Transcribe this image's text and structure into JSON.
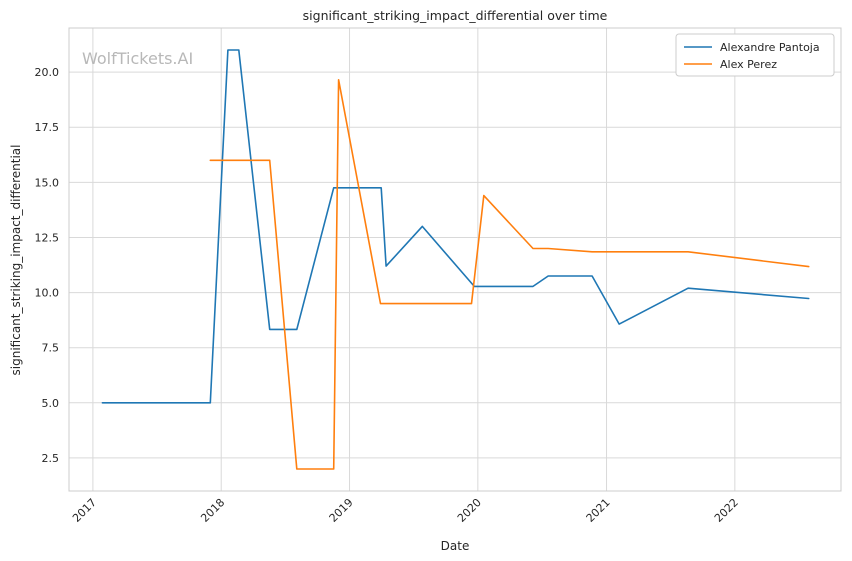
{
  "watermark": "WolfTickets.AI",
  "chart_data": {
    "type": "line",
    "title": "significant_striking_impact_differential over time",
    "xlabel": "Date",
    "ylabel": "significant_striking_impact_differential",
    "x_ticks": [
      "2017",
      "2018",
      "2019",
      "2020",
      "2021",
      "2022"
    ],
    "y_ticks": [
      "2.5",
      "5.0",
      "7.5",
      "10.0",
      "12.5",
      "15.0",
      "17.5",
      "20.0"
    ],
    "xlim": [
      "2016-10-25",
      "2022-10-30"
    ],
    "ylim": [
      1.0,
      22.0
    ],
    "grid": true,
    "legend_position": "top-right",
    "series": [
      {
        "name": "Alexandre Pantoja",
        "color": "#1f77b4",
        "points": [
          [
            "2017-01-28",
            5.0
          ],
          [
            "2017-12-01",
            5.0
          ],
          [
            "2018-01-20",
            21.0
          ],
          [
            "2018-02-20",
            21.0
          ],
          [
            "2018-05-19",
            8.33
          ],
          [
            "2018-08-04",
            8.33
          ],
          [
            "2018-11-17",
            14.75
          ],
          [
            "2019-04-01",
            14.75
          ],
          [
            "2019-04-15",
            11.2
          ],
          [
            "2019-07-27",
            13.0
          ],
          [
            "2019-12-22",
            10.28
          ],
          [
            "2020-06-06",
            10.28
          ],
          [
            "2020-07-19",
            10.75
          ],
          [
            "2020-11-21",
            10.75
          ],
          [
            "2021-02-06",
            8.57
          ],
          [
            "2021-08-21",
            10.2
          ],
          [
            "2022-07-30",
            9.73
          ]
        ]
      },
      {
        "name": "Alex Perez",
        "color": "#ff7f0e",
        "points": [
          [
            "2017-12-01",
            16.0
          ],
          [
            "2018-05-19",
            16.0
          ],
          [
            "2018-08-04",
            2.0
          ],
          [
            "2018-11-17",
            2.0
          ],
          [
            "2018-12-01",
            19.65
          ],
          [
            "2019-03-30",
            9.5
          ],
          [
            "2019-12-14",
            9.5
          ],
          [
            "2020-01-18",
            14.4
          ],
          [
            "2020-06-06",
            12.0
          ],
          [
            "2020-07-19",
            12.0
          ],
          [
            "2020-11-21",
            11.85
          ],
          [
            "2021-08-21",
            11.85
          ],
          [
            "2022-07-30",
            11.18
          ]
        ]
      }
    ]
  }
}
